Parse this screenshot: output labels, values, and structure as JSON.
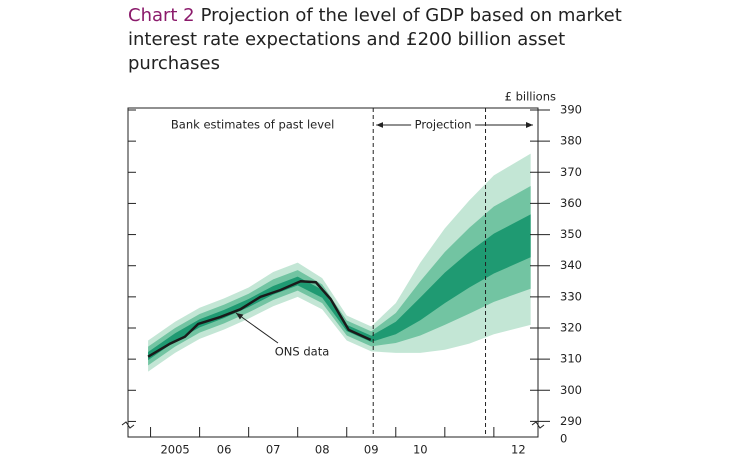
{
  "chart_data": {
    "type": "fan",
    "title_label": "Chart 2",
    "title": "Projection of the level of GDP based on market interest rate expectations and £200 billion asset purchases",
    "y_unit": "£ billions",
    "annotations": [
      "Bank estimates of past level",
      "Projection",
      "ONS data"
    ],
    "xlim": [
      2004.54,
      2012.9
    ],
    "ylim": [
      285,
      390
    ],
    "yticks": [
      {
        "value": 0,
        "label": "0"
      },
      290,
      300,
      310,
      320,
      330,
      340,
      350,
      360,
      370,
      380,
      390
    ],
    "xticks": [
      {
        "value": 2005.5,
        "label": "2005"
      },
      {
        "value": 2006.5,
        "label": "06"
      },
      {
        "value": 2007.5,
        "label": "07"
      },
      {
        "value": 2008.5,
        "label": "08"
      },
      {
        "value": 2009.5,
        "label": "09"
      },
      {
        "value": 2010.5,
        "label": "10"
      },
      {
        "value": 2012.5,
        "label": "12"
      }
    ],
    "x_minor_ticks": [
      2005,
      2006,
      2007,
      2008,
      2009,
      2010,
      2011,
      2012
    ],
    "dividers_x": [
      2009.54,
      2011.83
    ],
    "fan_x": [
      2004.95,
      2005.5,
      2006,
      2006.5,
      2007,
      2007.5,
      2008,
      2008.5,
      2009,
      2009.5,
      2010,
      2010.5,
      2011,
      2011.5,
      2012,
      2012.75
    ],
    "fan_bands": [
      {
        "color": "#c3e6d5",
        "upper": [
          316,
          322,
          326.5,
          329.5,
          333,
          338,
          341,
          336,
          324,
          320.5,
          328,
          341,
          352,
          361,
          369,
          376
        ],
        "lower": [
          306,
          312,
          316.5,
          319.5,
          323,
          327,
          330,
          326,
          316,
          312.5,
          312,
          312,
          313,
          315,
          318,
          321
        ]
      },
      {
        "color": "#72c4a2",
        "upper": [
          314,
          320,
          324.5,
          327.5,
          331,
          335.6,
          338.6,
          334,
          322.4,
          318.9,
          324.8,
          335,
          344.4,
          352.2,
          359,
          365.6
        ],
        "lower": [
          308,
          314,
          318.5,
          321.5,
          325,
          329,
          332,
          328,
          317.6,
          314.1,
          315.2,
          317.6,
          321,
          324.6,
          328.4,
          332.6
        ]
      },
      {
        "color": "#1f9a72",
        "upper": [
          312.3,
          318.3,
          322.8,
          325.8,
          329.3,
          333.5,
          336.5,
          332.3,
          321,
          317.5,
          322,
          329.8,
          337.8,
          344.5,
          350.3,
          356.5
        ],
        "lower": [
          309.7,
          315.7,
          320.2,
          323.2,
          326.7,
          330.7,
          333.7,
          329.7,
          319,
          315.5,
          318,
          322.5,
          328,
          333,
          337.5,
          342.7
        ]
      }
    ],
    "series": [
      {
        "color": "#1a1a1a",
        "x": [
          2004.95,
          2005.4,
          2005.7,
          2005.97,
          2006.42,
          2006.83,
          2007.24,
          2007.65,
          2008.06,
          2008.37,
          2008.67,
          2009.04,
          2009.49
        ],
        "values": [
          310.8,
          315,
          317.2,
          321.3,
          323.5,
          326,
          330,
          332.2,
          335,
          334.7,
          329.3,
          319.4,
          316.2
        ]
      }
    ]
  }
}
